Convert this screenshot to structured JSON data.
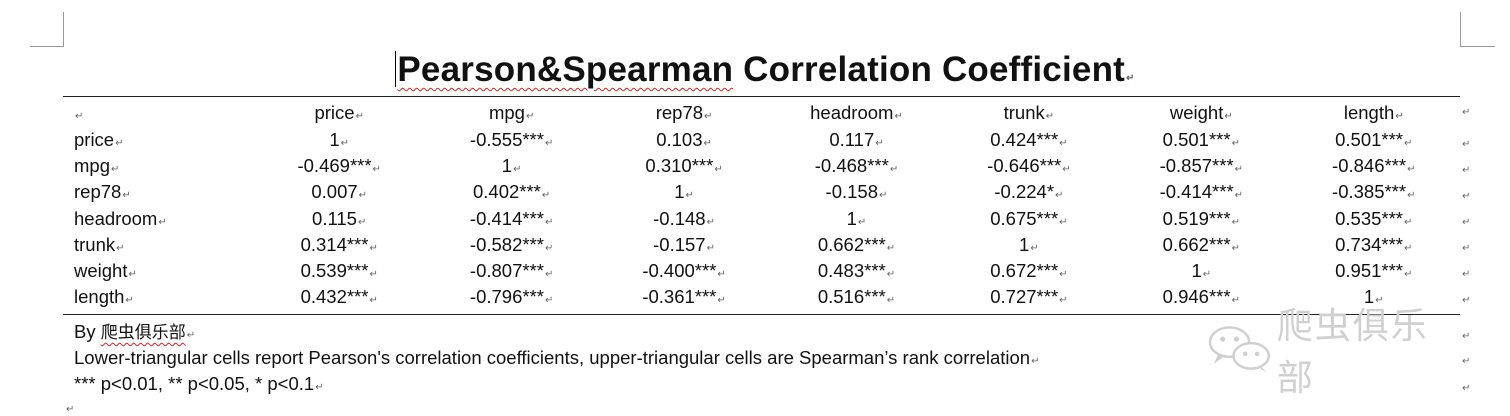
{
  "document": {
    "title": "Pearson&Spearman Correlation Coefficient",
    "title_part1": "Pearson&Spearman",
    "title_part2": " Correlation Coefficient",
    "paragraph_mark": "↵"
  },
  "table": {
    "columns": [
      "price",
      "mpg",
      "rep78",
      "headroom",
      "trunk",
      "weight",
      "length"
    ],
    "rows": [
      {
        "name": "price",
        "cells": [
          "1",
          "-0.555***",
          "0.103",
          "0.117",
          "0.424***",
          "0.501***",
          "0.501***"
        ]
      },
      {
        "name": "mpg",
        "cells": [
          "-0.469***",
          "1",
          "0.310***",
          "-0.468***",
          "-0.646***",
          "-0.857***",
          "-0.846***"
        ]
      },
      {
        "name": "rep78",
        "cells": [
          "0.007",
          "0.402***",
          "1",
          "-0.158",
          "-0.224*",
          "-0.414***",
          "-0.385***"
        ]
      },
      {
        "name": "headroom",
        "cells": [
          "0.115",
          "-0.414***",
          "-0.148",
          "1",
          "0.675***",
          "0.519***",
          "0.535***"
        ]
      },
      {
        "name": "trunk",
        "cells": [
          "0.314***",
          "-0.582***",
          "-0.157",
          "0.662***",
          "1",
          "0.662***",
          "0.734***"
        ]
      },
      {
        "name": "weight",
        "cells": [
          "0.539***",
          "-0.807***",
          "-0.400***",
          "0.483***",
          "0.672***",
          "1",
          "0.951***"
        ]
      },
      {
        "name": "length",
        "cells": [
          "0.432***",
          "-0.796***",
          "-0.361***",
          "0.516***",
          "0.727***",
          "0.946***",
          "1"
        ]
      }
    ]
  },
  "footer": {
    "by_prefix": "By ",
    "by_name": "爬虫俱乐部",
    "note": "Lower-triangular cells report Pearson's correlation coefficients, upper-triangular cells are Spearman’s rank correlation",
    "significance": "*** p<0.01, ** p<0.05, * p<0.1"
  },
  "watermark": {
    "text": "爬虫俱乐部",
    "icon": "wechat-icon"
  }
}
